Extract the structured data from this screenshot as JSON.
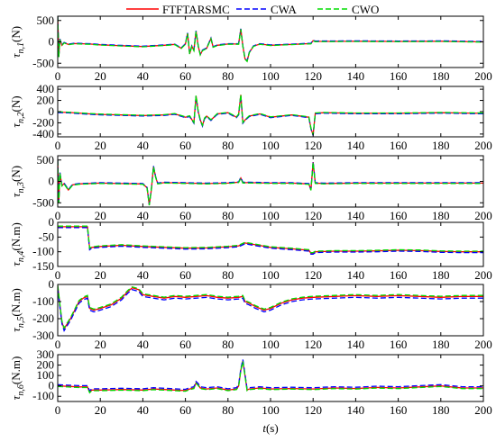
{
  "chart_data": {
    "type": "line",
    "legend": {
      "placement": "top",
      "entries": [
        {
          "name": "FTFTARSMC",
          "color": "#ff0000",
          "dash": "solid"
        },
        {
          "name": "CWA",
          "color": "#0000ff",
          "dash": "dashed"
        },
        {
          "name": "CWO",
          "color": "#00dd00",
          "dash": "dashed"
        }
      ]
    },
    "shared_x": {
      "label_italic": "t",
      "label_rest": "(s)",
      "range": [
        0,
        200
      ],
      "ticks": [
        0,
        20,
        40,
        60,
        80,
        100,
        120,
        140,
        160,
        180,
        200
      ]
    },
    "subplots": [
      {
        "ylabel_sub": "n,1",
        "ylabel_unit": "(N)",
        "ylim": [
          -600,
          600
        ],
        "yticks": [
          500,
          0,
          -500
        ],
        "base": [
          [
            0,
            600
          ],
          [
            0.5,
            -350
          ],
          [
            1,
            60
          ],
          [
            2,
            -80
          ],
          [
            3,
            -20
          ],
          [
            5,
            -60
          ],
          [
            8,
            -40
          ],
          [
            15,
            -50
          ],
          [
            20,
            -70
          ],
          [
            30,
            -90
          ],
          [
            40,
            -110
          ],
          [
            50,
            -80
          ],
          [
            55,
            -60
          ],
          [
            58,
            -150
          ],
          [
            60,
            -50
          ],
          [
            61,
            200
          ],
          [
            62,
            -280
          ],
          [
            63,
            -100
          ],
          [
            64,
            -200
          ],
          [
            65,
            250
          ],
          [
            66,
            -100
          ],
          [
            67,
            -300
          ],
          [
            68,
            -200
          ],
          [
            70,
            -150
          ],
          [
            72,
            80
          ],
          [
            73,
            -120
          ],
          [
            75,
            -80
          ],
          [
            80,
            -50
          ],
          [
            85,
            -50
          ],
          [
            86,
            300
          ],
          [
            87,
            -100
          ],
          [
            88,
            -400
          ],
          [
            89,
            -450
          ],
          [
            90,
            -250
          ],
          [
            92,
            -100
          ],
          [
            95,
            -50
          ],
          [
            100,
            -80
          ],
          [
            110,
            -60
          ],
          [
            119,
            -40
          ],
          [
            120,
            30
          ],
          [
            121,
            10
          ],
          [
            140,
            15
          ],
          [
            160,
            10
          ],
          [
            180,
            15
          ],
          [
            200,
            0
          ]
        ],
        "series_offsets": [
          {
            "name": "FTFTARSMC",
            "offset": 0
          },
          {
            "name": "CWA",
            "offset": 8
          },
          {
            "name": "CWO",
            "offset": -6
          }
        ]
      },
      {
        "ylabel_sub": "n,2",
        "ylabel_unit": "(N)",
        "ylim": [
          -450,
          450
        ],
        "yticks": [
          400,
          200,
          0,
          -200,
          -400
        ],
        "base": [
          [
            0,
            -10
          ],
          [
            5,
            -15
          ],
          [
            15,
            -40
          ],
          [
            20,
            -50
          ],
          [
            30,
            -60
          ],
          [
            40,
            -70
          ],
          [
            50,
            -60
          ],
          [
            55,
            -40
          ],
          [
            60,
            -100
          ],
          [
            62,
            -80
          ],
          [
            64,
            -200
          ],
          [
            65,
            280
          ],
          [
            66,
            0
          ],
          [
            67,
            -150
          ],
          [
            68,
            -250
          ],
          [
            69,
            -120
          ],
          [
            70,
            -80
          ],
          [
            72,
            -150
          ],
          [
            75,
            -40
          ],
          [
            80,
            -20
          ],
          [
            84,
            -100
          ],
          [
            85,
            -50
          ],
          [
            86,
            300
          ],
          [
            87,
            -200
          ],
          [
            88,
            -150
          ],
          [
            90,
            -80
          ],
          [
            95,
            -40
          ],
          [
            100,
            -100
          ],
          [
            110,
            -60
          ],
          [
            118,
            -100
          ],
          [
            119,
            -300
          ],
          [
            120,
            -420
          ],
          [
            121,
            -30
          ],
          [
            125,
            -20
          ],
          [
            140,
            -30
          ],
          [
            160,
            -30
          ],
          [
            180,
            -20
          ],
          [
            200,
            -30
          ]
        ],
        "series_offsets": [
          {
            "name": "FTFTARSMC",
            "offset": 0
          },
          {
            "name": "CWA",
            "offset": -8
          },
          {
            "name": "CWO",
            "offset": 6
          }
        ]
      },
      {
        "ylabel_sub": "n,3",
        "ylabel_unit": "(N)",
        "ylim": [
          -600,
          600
        ],
        "yticks": [
          500,
          0,
          -500
        ],
        "base": [
          [
            0,
            500
          ],
          [
            0.5,
            -500
          ],
          [
            1,
            200
          ],
          [
            2,
            -100
          ],
          [
            3,
            -50
          ],
          [
            5,
            -200
          ],
          [
            7,
            -80
          ],
          [
            10,
            -60
          ],
          [
            20,
            -40
          ],
          [
            30,
            -50
          ],
          [
            40,
            -60
          ],
          [
            42,
            -150
          ],
          [
            43,
            -550
          ],
          [
            44,
            -200
          ],
          [
            45,
            350
          ],
          [
            46,
            100
          ],
          [
            47,
            -50
          ],
          [
            50,
            -30
          ],
          [
            60,
            -40
          ],
          [
            70,
            -50
          ],
          [
            80,
            -40
          ],
          [
            85,
            -20
          ],
          [
            86,
            80
          ],
          [
            87,
            -30
          ],
          [
            90,
            -30
          ],
          [
            100,
            -40
          ],
          [
            110,
            -40
          ],
          [
            118,
            -60
          ],
          [
            119,
            -200
          ],
          [
            120,
            450
          ],
          [
            121,
            -40
          ],
          [
            125,
            -50
          ],
          [
            140,
            -40
          ],
          [
            160,
            -40
          ],
          [
            180,
            -40
          ],
          [
            200,
            -40
          ]
        ],
        "series_offsets": [
          {
            "name": "FTFTARSMC",
            "offset": 0
          },
          {
            "name": "CWA",
            "offset": 10
          },
          {
            "name": "CWO",
            "offset": -8
          }
        ]
      },
      {
        "ylabel_sub": "n,4",
        "ylabel_unit": "(N.m)",
        "ylim": [
          -150,
          0
        ],
        "yticks": [
          0,
          -50,
          -100,
          -150
        ],
        "base": [
          [
            0,
            -15
          ],
          [
            5,
            -15
          ],
          [
            10,
            -15
          ],
          [
            14,
            -15
          ],
          [
            15,
            -90
          ],
          [
            16,
            -85
          ],
          [
            20,
            -82
          ],
          [
            30,
            -78
          ],
          [
            40,
            -82
          ],
          [
            50,
            -85
          ],
          [
            60,
            -88
          ],
          [
            70,
            -87
          ],
          [
            80,
            -83
          ],
          [
            85,
            -80
          ],
          [
            88,
            -70
          ],
          [
            92,
            -75
          ],
          [
            96,
            -80
          ],
          [
            100,
            -85
          ],
          [
            110,
            -90
          ],
          [
            118,
            -95
          ],
          [
            119,
            -105
          ],
          [
            120,
            -105
          ],
          [
            121,
            -100
          ],
          [
            130,
            -98
          ],
          [
            140,
            -98
          ],
          [
            150,
            -97
          ],
          [
            160,
            -95
          ],
          [
            170,
            -96
          ],
          [
            180,
            -99
          ],
          [
            190,
            -100
          ],
          [
            200,
            -100
          ]
        ],
        "series_offsets": [
          {
            "name": "FTFTARSMC",
            "offset": 0
          },
          {
            "name": "CWA",
            "offset": -3
          },
          {
            "name": "CWO",
            "offset": 2
          }
        ]
      },
      {
        "ylabel_sub": "n,5",
        "ylabel_unit": "(N.m)",
        "ylim": [
          -300,
          0
        ],
        "yticks": [
          0,
          -100,
          -200,
          -300
        ],
        "base": [
          [
            0,
            -10
          ],
          [
            1,
            -120
          ],
          [
            2,
            -220
          ],
          [
            3,
            -260
          ],
          [
            4,
            -240
          ],
          [
            6,
            -200
          ],
          [
            8,
            -150
          ],
          [
            10,
            -100
          ],
          [
            12,
            -80
          ],
          [
            14,
            -70
          ],
          [
            15,
            -140
          ],
          [
            17,
            -150
          ],
          [
            20,
            -140
          ],
          [
            25,
            -120
          ],
          [
            30,
            -80
          ],
          [
            33,
            -40
          ],
          [
            35,
            -20
          ],
          [
            38,
            -30
          ],
          [
            40,
            -60
          ],
          [
            45,
            -70
          ],
          [
            50,
            -80
          ],
          [
            55,
            -70
          ],
          [
            60,
            -75
          ],
          [
            65,
            -70
          ],
          [
            70,
            -65
          ],
          [
            75,
            -75
          ],
          [
            80,
            -80
          ],
          [
            85,
            -75
          ],
          [
            87,
            -70
          ],
          [
            88,
            -100
          ],
          [
            90,
            -110
          ],
          [
            93,
            -130
          ],
          [
            97,
            -150
          ],
          [
            100,
            -140
          ],
          [
            105,
            -110
          ],
          [
            110,
            -90
          ],
          [
            115,
            -80
          ],
          [
            120,
            -75
          ],
          [
            130,
            -70
          ],
          [
            140,
            -65
          ],
          [
            150,
            -70
          ],
          [
            160,
            -65
          ],
          [
            170,
            -70
          ],
          [
            180,
            -75
          ],
          [
            190,
            -70
          ],
          [
            200,
            -70
          ]
        ],
        "series_offsets": [
          {
            "name": "FTFTARSMC",
            "offset": 0
          },
          {
            "name": "CWA",
            "offset": -10
          },
          {
            "name": "CWO",
            "offset": 6
          }
        ]
      },
      {
        "ylabel_sub": "n,6",
        "ylabel_unit": "(N.m)",
        "ylim": [
          -150,
          300
        ],
        "yticks": [
          300,
          200,
          100,
          0,
          -100
        ],
        "base": [
          [
            0,
            0
          ],
          [
            5,
            -5
          ],
          [
            10,
            -10
          ],
          [
            14,
            -10
          ],
          [
            15,
            -60
          ],
          [
            16,
            -40
          ],
          [
            20,
            -40
          ],
          [
            30,
            -35
          ],
          [
            40,
            -40
          ],
          [
            45,
            -30
          ],
          [
            50,
            -35
          ],
          [
            55,
            -40
          ],
          [
            60,
            -45
          ],
          [
            62,
            -30
          ],
          [
            64,
            -20
          ],
          [
            65,
            30
          ],
          [
            66,
            10
          ],
          [
            67,
            -20
          ],
          [
            70,
            -30
          ],
          [
            75,
            -20
          ],
          [
            80,
            -40
          ],
          [
            84,
            -30
          ],
          [
            85,
            0
          ],
          [
            86,
            150
          ],
          [
            87,
            240
          ],
          [
            88,
            100
          ],
          [
            89,
            -40
          ],
          [
            90,
            -30
          ],
          [
            95,
            -20
          ],
          [
            100,
            -30
          ],
          [
            110,
            -25
          ],
          [
            120,
            -30
          ],
          [
            130,
            -20
          ],
          [
            140,
            -25
          ],
          [
            150,
            -15
          ],
          [
            160,
            -20
          ],
          [
            170,
            -10
          ],
          [
            180,
            0
          ],
          [
            190,
            -20
          ],
          [
            200,
            -20
          ]
        ],
        "series_offsets": [
          {
            "name": "FTFTARSMC",
            "offset": 0
          },
          {
            "name": "CWA",
            "offset": 12
          },
          {
            "name": "CWO",
            "offset": -6
          }
        ]
      }
    ]
  }
}
